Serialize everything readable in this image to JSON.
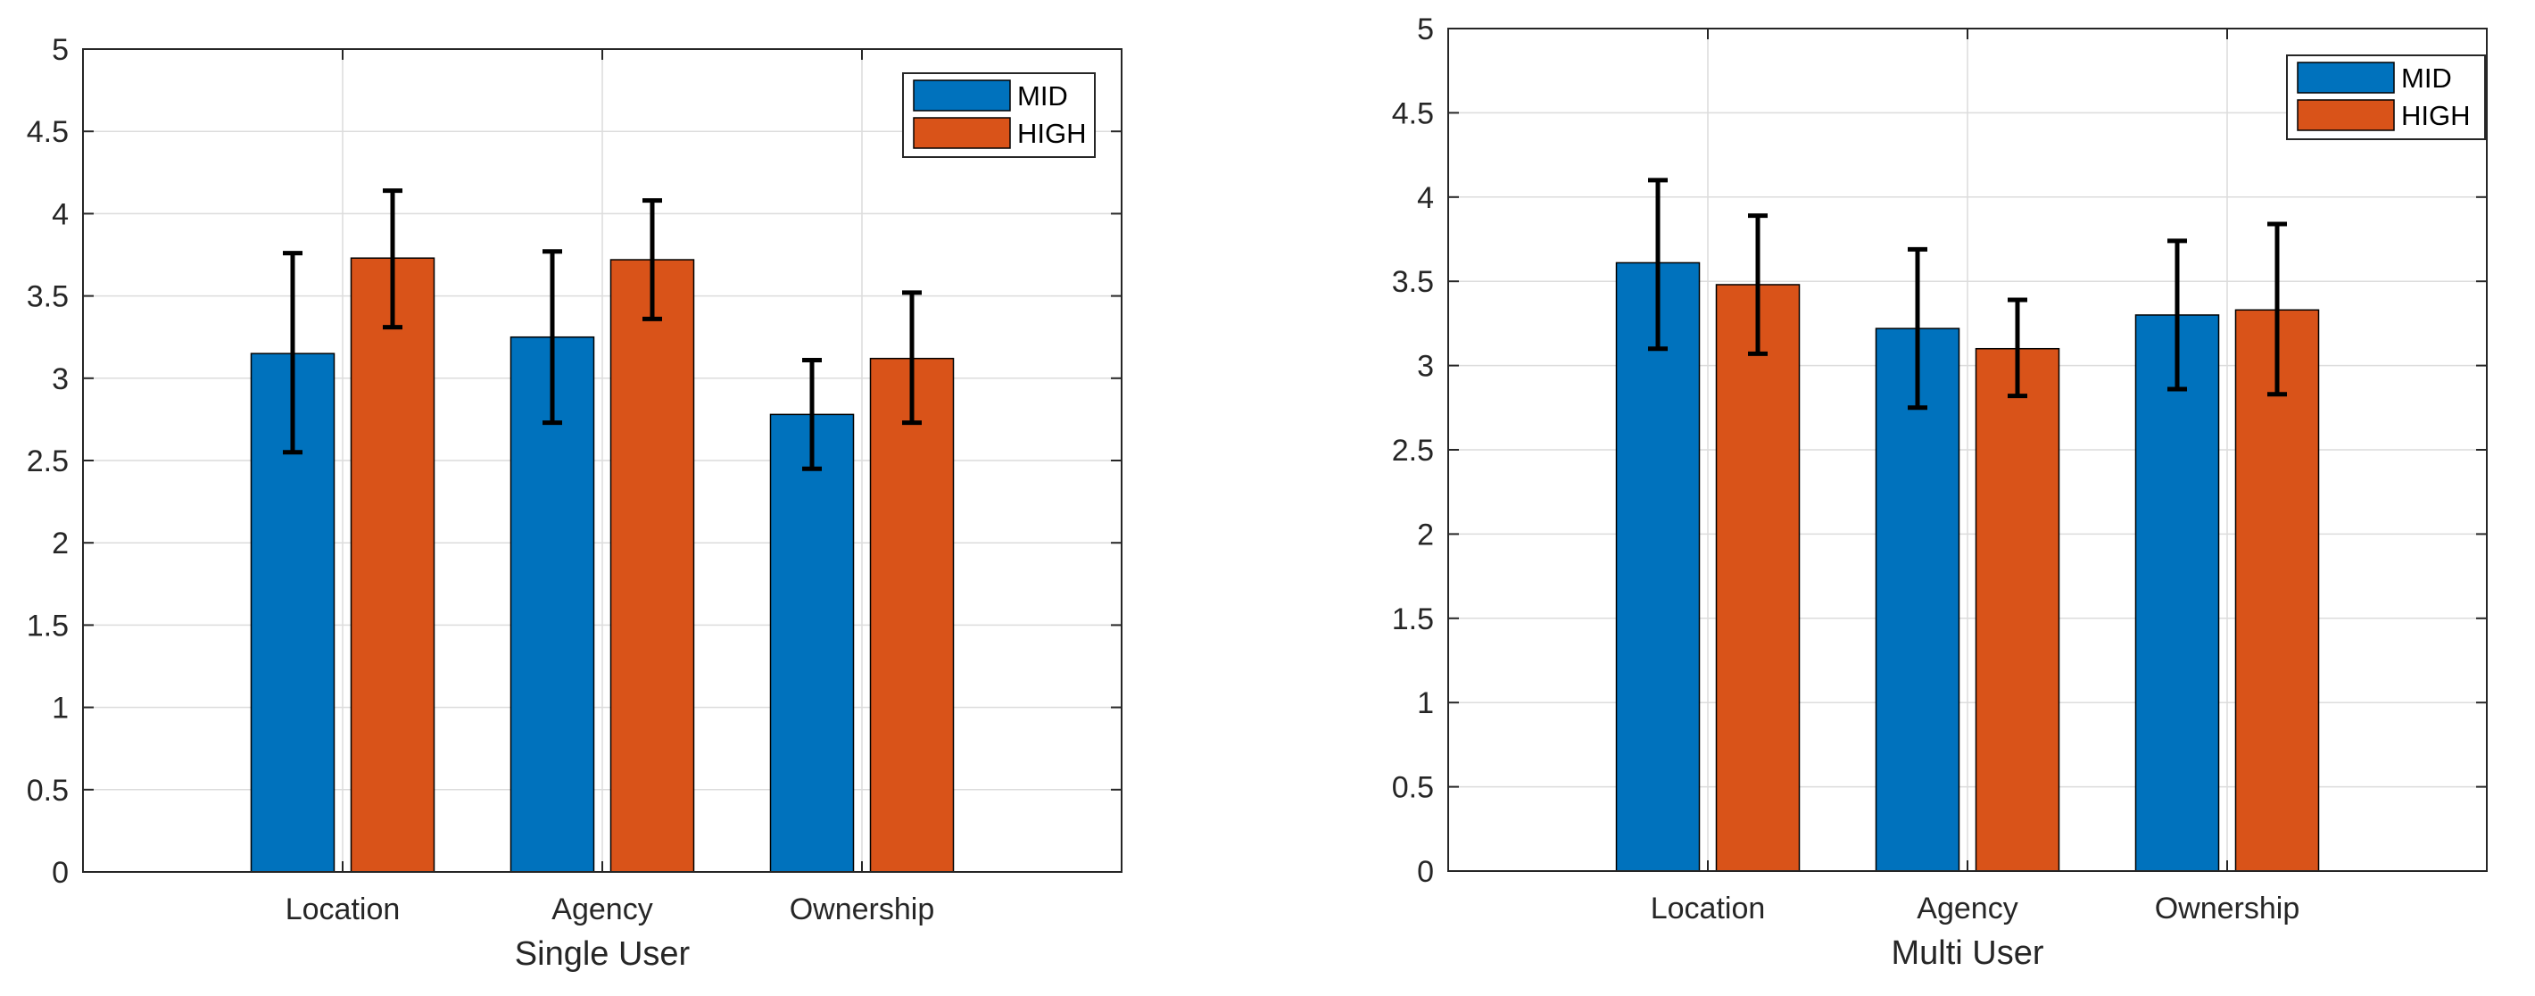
{
  "chart_data": [
    {
      "type": "bar",
      "title": "",
      "xlabel": "Single User",
      "ylabel": "",
      "ylim": [
        0,
        5
      ],
      "yticks": [
        "0",
        "0.5",
        "1",
        "1.5",
        "2",
        "2.5",
        "3",
        "3.5",
        "4",
        "4.5",
        "5"
      ],
      "grid": true,
      "legend_position": "top-right",
      "categories": [
        "Location",
        "Agency",
        "Ownership"
      ],
      "series": [
        {
          "name": "MID",
          "color": "#0072BD",
          "values": [
            3.15,
            3.25,
            2.78
          ],
          "error_low": [
            2.55,
            2.73,
            2.45
          ],
          "error_high": [
            3.76,
            3.77,
            3.11
          ]
        },
        {
          "name": "HIGH",
          "color": "#D95319",
          "values": [
            3.73,
            3.72,
            3.12
          ],
          "error_low": [
            3.31,
            3.36,
            2.73
          ],
          "error_high": [
            4.14,
            4.08,
            3.52
          ]
        }
      ]
    },
    {
      "type": "bar",
      "title": "",
      "xlabel": "Multi User",
      "ylabel": "",
      "ylim": [
        0,
        5
      ],
      "yticks": [
        "0",
        "0.5",
        "1",
        "1.5",
        "2",
        "2.5",
        "3",
        "3.5",
        "4",
        "4.5",
        "5"
      ],
      "grid": true,
      "legend_position": "top-right",
      "categories": [
        "Location",
        "Agency",
        "Ownership"
      ],
      "series": [
        {
          "name": "MID",
          "color": "#0072BD",
          "values": [
            3.61,
            3.22,
            3.3
          ],
          "error_low": [
            3.1,
            2.75,
            2.86
          ],
          "error_high": [
            4.1,
            3.69,
            3.74
          ]
        },
        {
          "name": "HIGH",
          "color": "#D95319",
          "values": [
            3.48,
            3.1,
            3.33
          ],
          "error_low": [
            3.07,
            2.82,
            2.83
          ],
          "error_high": [
            3.89,
            3.39,
            3.84
          ]
        }
      ]
    }
  ]
}
